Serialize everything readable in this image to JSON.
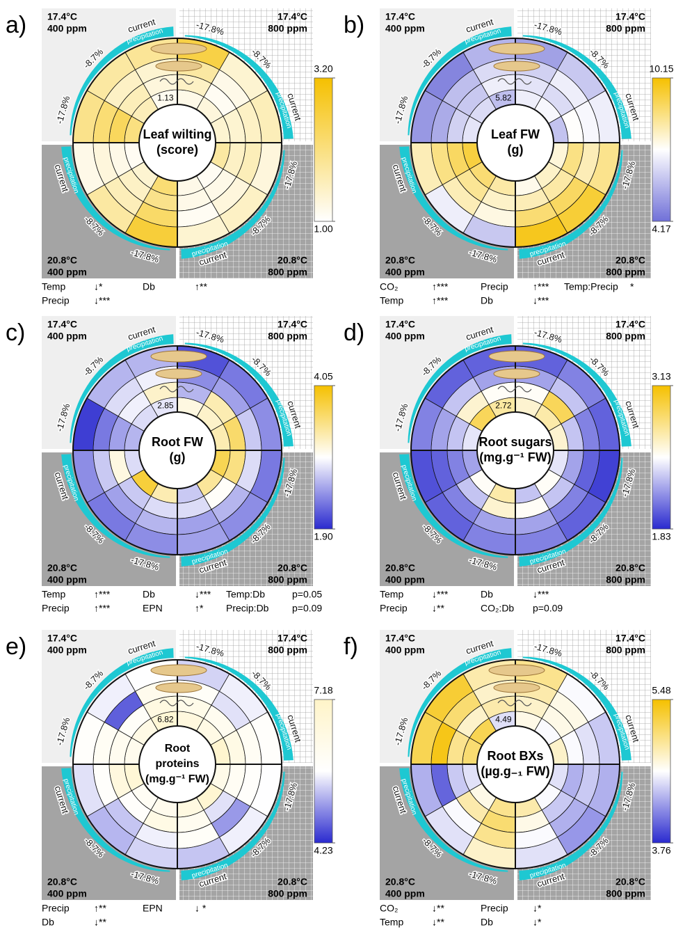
{
  "common": {
    "quadrants": [
      {
        "temp": "17.4°C",
        "co2": "400 ppm"
      },
      {
        "temp": "17.4°C",
        "co2": "800 ppm"
      },
      {
        "temp": "20.8°C",
        "co2": "400 ppm"
      },
      {
        "temp": "20.8°C",
        "co2": "800 ppm"
      }
    ],
    "sectors": [
      "-17.8%",
      "-8.7%",
      "current"
    ],
    "arc_label": "precipitation"
  },
  "chart_data": [
    {
      "type": "radial",
      "panel": "a)",
      "title": [
        "Leaf wilting",
        "(score)"
      ],
      "colormap": [
        "#ffffff",
        "#f5c000"
      ],
      "clim": [
        1,
        3.2
      ],
      "cticks": [
        {
          "value": 1,
          "label": "1.00"
        },
        {
          "value": 3.2,
          "label": "3.20"
        }
      ],
      "values": [
        [
          1.2,
          1.3,
          1.4,
          1.8,
          1.1,
          1.2,
          2.2,
          1.4,
          1.1,
          2.1,
          1.6,
          1.13
        ],
        [
          1.5,
          1.1,
          1.4,
          1.5,
          1.2,
          1.2,
          2.0,
          1.5,
          1.2,
          2.4,
          1.6,
          1.3
        ],
        [
          1.8,
          1.2,
          1.5,
          1.6,
          1.3,
          1.1,
          2.3,
          1.6,
          1.3,
          2.2,
          1.5,
          1.4
        ],
        [
          2.6,
          1.4,
          1.6,
          1.3,
          1.5,
          1.4,
          2.7,
          1.8,
          1.2,
          2.0,
          1.8,
          1.9
        ]
      ],
      "stats": [
        [
          [
            "Temp",
            "↓*"
          ],
          [
            "Db",
            "↑**"
          ]
        ],
        [
          [
            "Precip",
            "↓***"
          ]
        ]
      ]
    },
    {
      "type": "radial",
      "panel": "b)",
      "title": [
        "Leaf FW",
        "(g)"
      ],
      "colormap": [
        "#7070d8",
        "#ffffff",
        "#f5c000"
      ],
      "clim": [
        4.17,
        10.15
      ],
      "cticks": [
        4.17,
        10.15
      ],
      "values": [
        [
          6.8,
          7.0,
          5.9,
          7.6,
          7.8,
          7.4,
          8.2,
          8.8,
          9.4,
          6.6,
          6.4,
          5.82
        ],
        [
          6.6,
          6.4,
          7.2,
          8.6,
          8.2,
          8.0,
          7.8,
          8.4,
          9.0,
          6.2,
          6.0,
          6.8
        ],
        [
          6.2,
          6.8,
          7.0,
          8.0,
          9.0,
          8.8,
          7.5,
          8.0,
          8.6,
          5.4,
          5.8,
          6.4
        ],
        [
          5.2,
          6.0,
          6.8,
          8.5,
          9.5,
          9.8,
          6.0,
          6.8,
          8.0,
          5.0,
          4.6,
          5.6
        ]
      ],
      "stats": [
        [
          [
            "CO₂",
            "↑***"
          ],
          [
            "Precip",
            "↑***"
          ],
          [
            "Temp:Precip",
            "*"
          ]
        ],
        [
          [
            "Temp",
            "↑***"
          ],
          [
            "Db",
            "↓***"
          ]
        ]
      ]
    },
    {
      "type": "radial",
      "panel": "c)",
      "title": [
        "Root FW",
        "(g)"
      ],
      "colormap": [
        "#2a2acf",
        "#ffffff",
        "#f5c000"
      ],
      "clim": [
        1.9,
        4.05
      ],
      "cticks": [
        {
          "value": 1.9,
          "label": "1.90"
        },
        4.05
      ],
      "values": [
        [
          3.1,
          3.2,
          3.3,
          3.7,
          3.4,
          2.7,
          3.3,
          3.8,
          2.8,
          2.6,
          2.8,
          2.85
        ],
        [
          2.6,
          3.3,
          3.6,
          3.5,
          3.0,
          2.8,
          2.8,
          2.7,
          3.1,
          2.5,
          2.9,
          3.2
        ],
        [
          2.4,
          2.5,
          2.7,
          2.8,
          2.6,
          2.5,
          2.6,
          2.5,
          2.7,
          2.3,
          2.8,
          2.9
        ],
        [
          2.1,
          2.3,
          2.4,
          2.3,
          2.4,
          2.5,
          2.4,
          2.3,
          2.4,
          2.0,
          2.6,
          2.6
        ]
      ],
      "stats": [
        [
          [
            "Temp",
            "↑***"
          ],
          [
            "Db",
            "↓***"
          ],
          [
            "Temp:Db",
            "p=0.05"
          ]
        ],
        [
          [
            "Precip",
            "↑***"
          ],
          [
            "EPN",
            "↑*"
          ],
          [
            "Precip:Db",
            "p=0.09"
          ]
        ]
      ]
    },
    {
      "type": "radial",
      "panel": "d)",
      "title": [
        "Root sugars",
        "(mg.g⁻¹ FW)"
      ],
      "colormap": [
        "#2a2acf",
        "#ffffff",
        "#f5c000"
      ],
      "clim": [
        1.83,
        3.13
      ],
      "cticks": [
        1.83,
        3.13
      ],
      "values": [
        [
          2.6,
          2.7,
          2.6,
          2.4,
          2.5,
          2.3,
          2.7,
          2.5,
          2.2,
          2.4,
          2.9,
          2.72
        ],
        [
          2.5,
          2.9,
          2.3,
          2.2,
          2.3,
          2.5,
          2.6,
          2.3,
          2.1,
          2.3,
          2.6,
          2.5
        ],
        [
          2.2,
          2.3,
          2.1,
          2.0,
          2.1,
          2.2,
          2.2,
          2.1,
          2.0,
          2.2,
          2.3,
          2.2
        ],
        [
          2.0,
          2.1,
          2.0,
          1.9,
          2.0,
          2.1,
          2.1,
          2.0,
          1.95,
          2.1,
          2.0,
          2.0
        ]
      ],
      "stats": [
        [
          [
            "Temp",
            "↓***"
          ],
          [
            "Db",
            "↓***"
          ]
        ],
        [
          [
            "Precip",
            "↓**"
          ],
          [
            "CO₂:Db",
            "p=0.09"
          ]
        ]
      ]
    },
    {
      "type": "radial",
      "panel": "e)",
      "title": [
        "Root",
        "proteins",
        "(mg.g⁻¹ FW)"
      ],
      "colormap": [
        "#2a2acf",
        "#ffffff",
        "#fff4c8"
      ],
      "clim": [
        4.23,
        7.18
      ],
      "cticks": [
        4.23,
        7.18
      ],
      "values": [
        [
          6.6,
          6.4,
          7.0,
          6.3,
          6.9,
          6.5,
          6.2,
          6.0,
          6.8,
          6.2,
          6.4,
          6.82
        ],
        [
          6.3,
          6.1,
          6.4,
          6.0,
          5.5,
          6.1,
          6.4,
          5.8,
          6.6,
          6.1,
          5.9,
          6.5
        ],
        [
          5.9,
          5.5,
          6.0,
          5.8,
          5.0,
          5.9,
          5.6,
          5.3,
          5.8,
          6.0,
          4.6,
          6.2
        ],
        [
          5.4,
          5.6,
          5.8,
          5.7,
          5.6,
          5.3,
          5.4,
          5.2,
          5.5,
          5.8,
          5.6,
          5.7
        ]
      ],
      "stats": [
        [
          [
            "Precip",
            "↑**"
          ],
          [
            "EPN",
            "↓ *"
          ]
        ],
        [
          [
            "Db",
            "↓**"
          ]
        ]
      ]
    },
    {
      "type": "radial",
      "panel": "f)",
      "title": [
        "Root BXs",
        "(µg.g₋₁ FW)"
      ],
      "colormap": [
        "#2a2acf",
        "#ffffff",
        "#f5c000"
      ],
      "clim": [
        3.76,
        5.48
      ],
      "cticks": [
        3.76,
        5.48
      ],
      "values": [
        [
          4.7,
          4.6,
          4.8,
          4.5,
          4.6,
          4.9,
          5.0,
          4.7,
          4.5,
          5.1,
          5.2,
          4.49
        ],
        [
          4.8,
          4.7,
          4.6,
          4.3,
          4.4,
          4.7,
          5.1,
          4.9,
          4.4,
          5.0,
          4.8,
          4.9
        ],
        [
          4.9,
          4.7,
          4.5,
          4.4,
          4.3,
          4.6,
          5.0,
          4.6,
          4.0,
          5.4,
          5.1,
          4.8
        ],
        [
          5.0,
          4.6,
          4.4,
          4.3,
          4.2,
          4.5,
          4.8,
          4.5,
          4.3,
          5.2,
          5.3,
          4.9
        ]
      ],
      "stats": [
        [
          [
            "CO₂",
            "↓**"
          ],
          [
            "Precip",
            "↓*"
          ]
        ],
        [
          [
            "Temp",
            "↓**"
          ],
          [
            "Db",
            "↓*"
          ]
        ]
      ]
    }
  ]
}
